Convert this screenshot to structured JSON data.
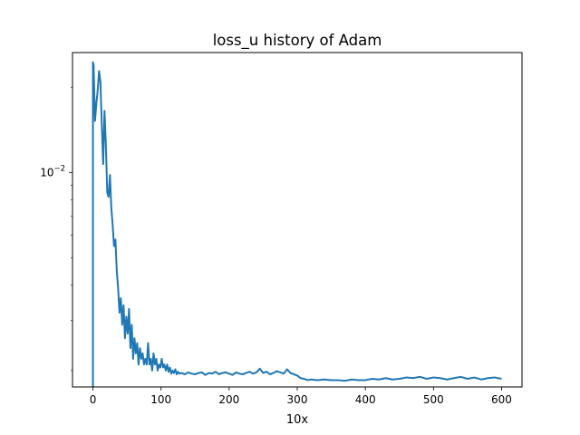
{
  "chart_data": {
    "type": "line",
    "title": "loss_u history of Adam",
    "xlabel": "10x",
    "ylabel": "",
    "xlim": [
      -30,
      630
    ],
    "ylim": [
      0.00175,
      0.0265
    ],
    "yscale": "log",
    "grid": false,
    "legend": "none",
    "x_ticks": [
      {
        "value": 0,
        "label": "0"
      },
      {
        "value": 100,
        "label": "100"
      },
      {
        "value": 200,
        "label": "200"
      },
      {
        "value": 300,
        "label": "300"
      },
      {
        "value": 400,
        "label": "400"
      },
      {
        "value": 500,
        "label": "500"
      },
      {
        "value": 600,
        "label": "600"
      }
    ],
    "y_ticks": [
      {
        "value": 0.01,
        "base": "10",
        "exponent": "−2"
      }
    ],
    "series": [
      {
        "color": "#1f77b4",
        "x": [
          0,
          0,
          1,
          3,
          5,
          7,
          9,
          11,
          13,
          15,
          17,
          19,
          21,
          23,
          25,
          27,
          29,
          31,
          33,
          35,
          37,
          39,
          41,
          43,
          45,
          47,
          49,
          51,
          53,
          55,
          57,
          59,
          61,
          63,
          65,
          67,
          69,
          71,
          73,
          75,
          77,
          79,
          81,
          83,
          85,
          87,
          89,
          91,
          93,
          95,
          97,
          99,
          101,
          103,
          105,
          107,
          109,
          111,
          113,
          115,
          117,
          119,
          121,
          123,
          125,
          127,
          130,
          135,
          140,
          145,
          150,
          155,
          160,
          165,
          170,
          175,
          180,
          185,
          190,
          195,
          200,
          205,
          210,
          215,
          220,
          225,
          230,
          235,
          240,
          245,
          250,
          255,
          260,
          265,
          270,
          275,
          280,
          285,
          290,
          295,
          300,
          305,
          310,
          315,
          320,
          330,
          340,
          350,
          360,
          370,
          380,
          390,
          400,
          410,
          420,
          430,
          440,
          450,
          460,
          470,
          480,
          490,
          500,
          510,
          520,
          530,
          540,
          550,
          560,
          570,
          580,
          590,
          600
        ],
        "y": [
          0.00175,
          0.0245,
          0.0239,
          0.0152,
          0.0175,
          0.0195,
          0.0228,
          0.0209,
          0.0148,
          0.0107,
          0.0165,
          0.0125,
          0.0085,
          0.0082,
          0.0098,
          0.0075,
          0.0065,
          0.0055,
          0.0058,
          0.0045,
          0.0039,
          0.0032,
          0.0036,
          0.0029,
          0.0034,
          0.0026,
          0.0031,
          0.0027,
          0.0033,
          0.0024,
          0.0029,
          0.0022,
          0.0026,
          0.0023,
          0.0025,
          0.0021,
          0.0024,
          0.0022,
          0.0023,
          0.0021,
          0.0022,
          0.0021,
          0.0025,
          0.0021,
          0.0022,
          0.002,
          0.0023,
          0.0021,
          0.0022,
          0.002,
          0.0021,
          0.00205,
          0.0022,
          0.00205,
          0.0021,
          0.002,
          0.0021,
          0.00198,
          0.00205,
          0.00195,
          0.002,
          0.00196,
          0.00202,
          0.00194,
          0.00198,
          0.00195,
          0.00196,
          0.00194,
          0.00197,
          0.00195,
          0.00194,
          0.00196,
          0.00197,
          0.00193,
          0.00196,
          0.00195,
          0.00198,
          0.00194,
          0.00196,
          0.00197,
          0.00195,
          0.00193,
          0.00197,
          0.00195,
          0.00194,
          0.00196,
          0.00198,
          0.00195,
          0.00197,
          0.00203,
          0.00196,
          0.00198,
          0.00194,
          0.00196,
          0.00199,
          0.00197,
          0.00195,
          0.00202,
          0.00196,
          0.00194,
          0.00192,
          0.00188,
          0.00187,
          0.00185,
          0.00186,
          0.00185,
          0.00186,
          0.00185,
          0.00185,
          0.00184,
          0.00186,
          0.00185,
          0.00185,
          0.00187,
          0.00186,
          0.00188,
          0.00186,
          0.00187,
          0.00189,
          0.00188,
          0.0019,
          0.00187,
          0.00189,
          0.00188,
          0.00186,
          0.00188,
          0.0019,
          0.00187,
          0.00189,
          0.00186,
          0.00188,
          0.00189,
          0.00187
        ]
      }
    ]
  }
}
